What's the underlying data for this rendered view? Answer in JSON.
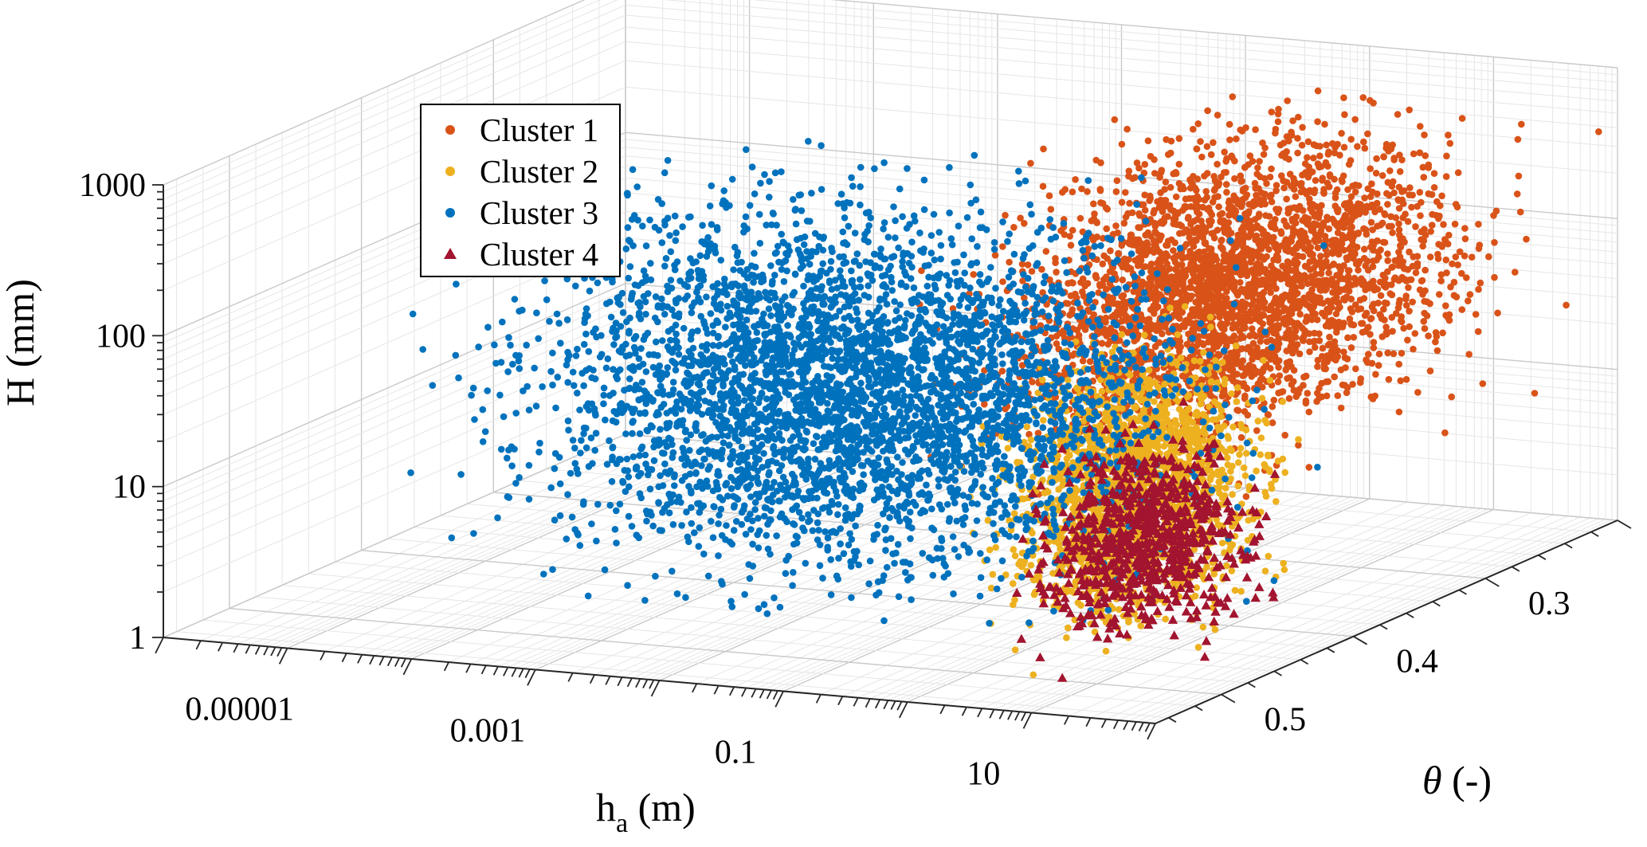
{
  "chart_data": {
    "type": "scatter",
    "subtype": "3d-scatter",
    "title": "",
    "axes": {
      "x": {
        "label": "h",
        "label_sub": "a",
        "label_suffix": " (m)",
        "scale": "log",
        "range": [
          1e-06,
          100
        ],
        "ticks": [
          {
            "value": 1e-05,
            "label": "0.00001"
          },
          {
            "value": 0.001,
            "label": "0.001"
          },
          {
            "value": 0.1,
            "label": "0.1"
          },
          {
            "value": 10,
            "label": "10"
          }
        ]
      },
      "y": {
        "label": "θ",
        "label_suffix": " (-)",
        "scale": "linear",
        "range": [
          0.2,
          0.55
        ],
        "ticks": [
          {
            "value": 0.3,
            "label": "0.3"
          },
          {
            "value": 0.4,
            "label": "0.4"
          },
          {
            "value": 0.5,
            "label": "0.5"
          }
        ]
      },
      "z": {
        "label": "H (mm)",
        "scale": "log",
        "range": [
          1,
          1000
        ],
        "ticks": [
          {
            "value": 1,
            "label": "1"
          },
          {
            "value": 10,
            "label": "10"
          },
          {
            "value": 100,
            "label": "100"
          },
          {
            "value": 1000,
            "label": "1000"
          }
        ]
      }
    },
    "grid": true,
    "legend_position": "top-left",
    "series": [
      {
        "name": "Cluster 1",
        "color": "#D95319",
        "marker": "circle",
        "approx_range": {
          "h_a": [
            0.1,
            100
          ],
          "theta": [
            0.2,
            0.5
          ],
          "H": [
            10,
            1000
          ]
        },
        "points": [
          [
            3,
            0.3,
            120
          ],
          [
            10,
            0.28,
            300
          ],
          [
            1,
            0.35,
            60
          ],
          [
            5,
            0.25,
            40
          ],
          [
            20,
            0.3,
            200
          ],
          [
            0.5,
            0.4,
            150
          ],
          [
            30,
            0.22,
            80
          ],
          [
            2,
            0.32,
            500
          ]
        ]
      },
      {
        "name": "Cluster 2",
        "color": "#EDB120",
        "marker": "circle",
        "approx_range": {
          "h_a": [
            0.5,
            20
          ],
          "theta": [
            0.35,
            0.5
          ],
          "H": [
            1,
            100
          ]
        },
        "points": [
          [
            2,
            0.45,
            20
          ],
          [
            5,
            0.42,
            8
          ],
          [
            1,
            0.47,
            3
          ],
          [
            3,
            0.4,
            50
          ],
          [
            8,
            0.44,
            2
          ]
        ]
      },
      {
        "name": "Cluster 3",
        "color": "#0072BD",
        "marker": "circle",
        "approx_range": {
          "h_a": [
            1e-05,
            10
          ],
          "theta": [
            0.3,
            0.5
          ],
          "H": [
            1,
            500
          ]
        },
        "points": [
          [
            0.01,
            0.4,
            15
          ],
          [
            0.05,
            0.38,
            8
          ],
          [
            0.1,
            0.42,
            25
          ],
          [
            0.001,
            0.4,
            40
          ],
          [
            0.3,
            0.4,
            5
          ],
          [
            0.02,
            0.35,
            60
          ]
        ]
      },
      {
        "name": "Cluster 4",
        "color": "#A2142F",
        "marker": "triangle",
        "approx_range": {
          "h_a": [
            1,
            30
          ],
          "theta": [
            0.38,
            0.5
          ],
          "H": [
            1,
            30
          ]
        },
        "points": [
          [
            3,
            0.45,
            5
          ],
          [
            6,
            0.43,
            2
          ],
          [
            2,
            0.48,
            10
          ],
          [
            10,
            0.44,
            3
          ]
        ]
      }
    ]
  }
}
